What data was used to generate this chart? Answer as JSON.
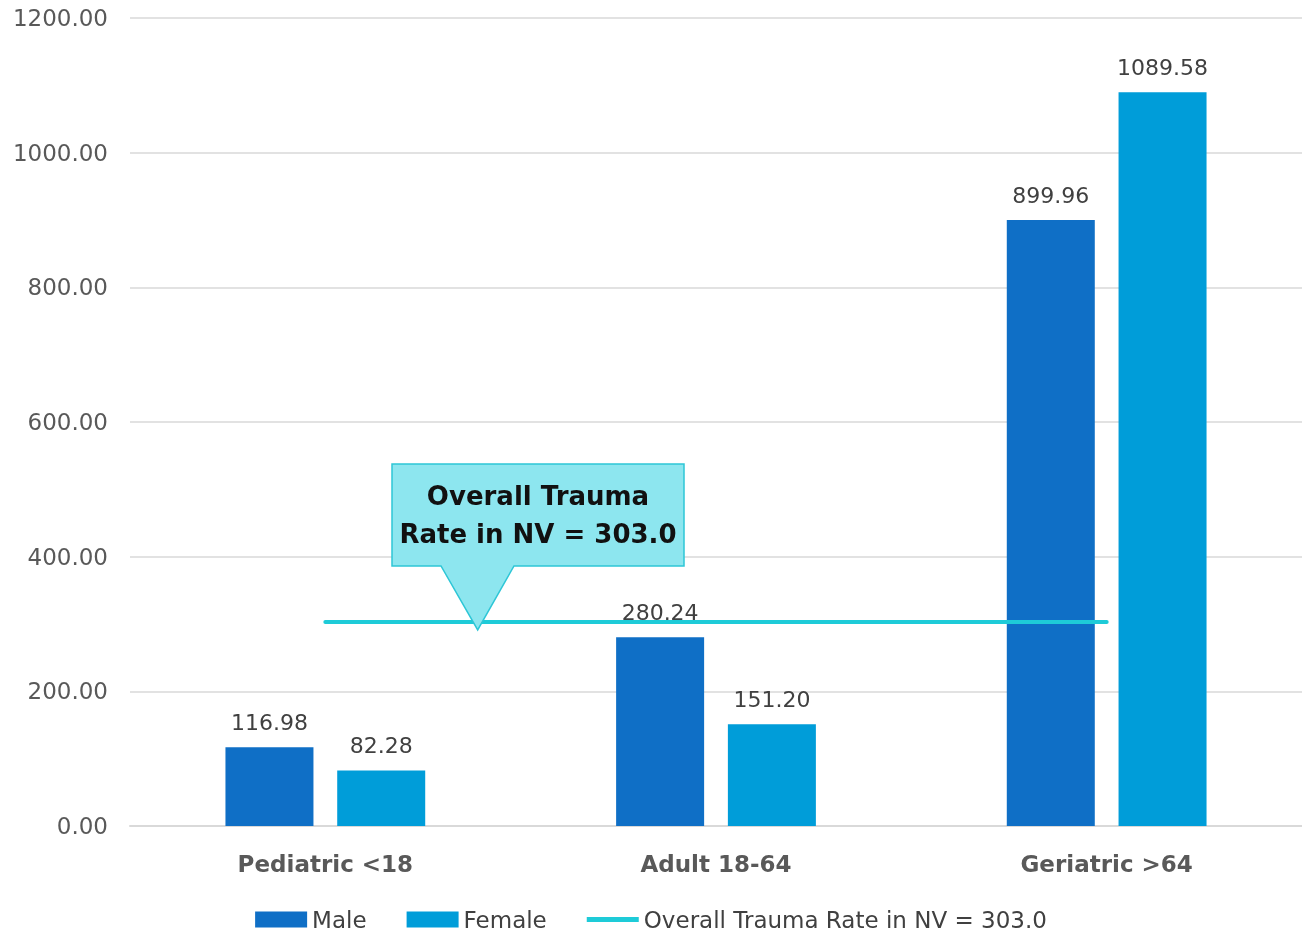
{
  "chart_data": {
    "type": "bar",
    "categories": [
      "Pediatric <18",
      "Adult 18-64",
      "Geriatric >64"
    ],
    "series": [
      {
        "name": "Male",
        "color": "#0f6fc6",
        "values": [
          116.98,
          280.24,
          899.96
        ]
      },
      {
        "name": "Female",
        "color": "#009dd9",
        "values": [
          82.28,
          151.2,
          1089.58
        ]
      },
      {
        "name": "Overall Trauma Rate in NV = 303.0",
        "type": "line",
        "color": "#1ecbd8",
        "values": [
          303.0,
          303.0,
          303.0
        ]
      }
    ],
    "value_labels": [
      "116.98",
      "280.24",
      "899.96",
      "82.28",
      "151.20",
      "1089.58"
    ],
    "ylim": [
      0,
      1200
    ],
    "yticks": [
      {
        "value": 0,
        "label": "0.00"
      },
      {
        "value": 200,
        "label": "200.00"
      },
      {
        "value": 400,
        "label": "400.00"
      },
      {
        "value": 600,
        "label": "600.00"
      },
      {
        "value": 800,
        "label": "800.00"
      },
      {
        "value": 1000,
        "label": "1000.00"
      },
      {
        "value": 1200,
        "label": "1200.00"
      }
    ],
    "grid": "y",
    "legend": "bottom",
    "marker": "none",
    "annotations": [
      "Overall Trauma Rate in NV = 303.0"
    ]
  }
}
